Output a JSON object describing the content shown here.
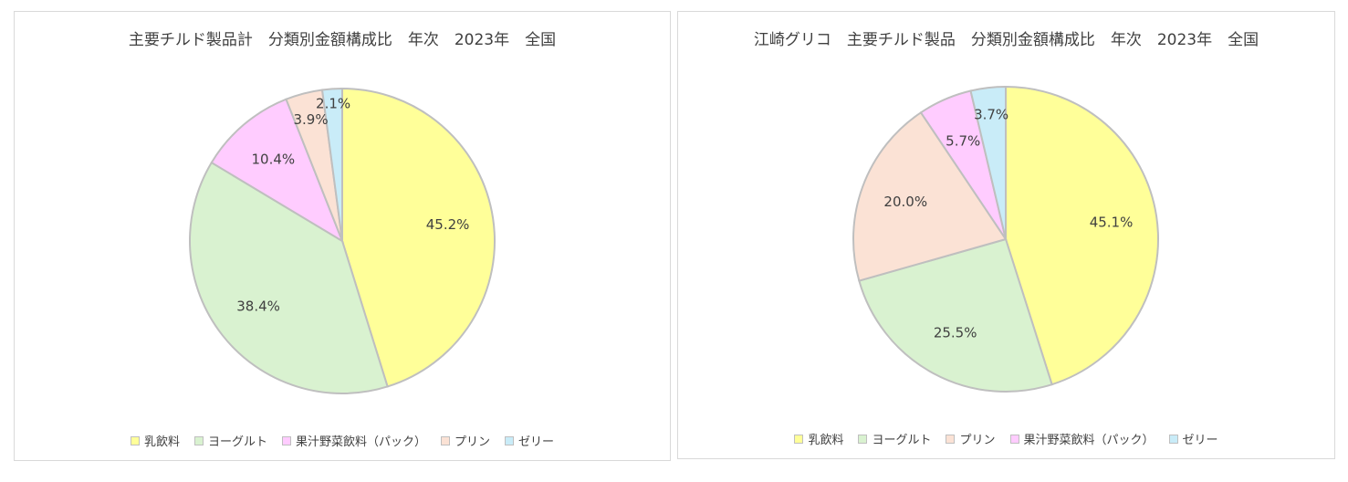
{
  "chart_data": [
    {
      "type": "pie",
      "title": "主要チルド製品計　分類別金額構成比　年次　2023年　全国",
      "legend_position": "bottom",
      "slices": [
        {
          "name": "乳飲料",
          "value": 45.2,
          "label": "45.2%",
          "color": "#ffff99"
        },
        {
          "name": "ヨーグルト",
          "value": 38.4,
          "label": "38.4%",
          "color": "#d9f2d0"
        },
        {
          "name": "果汁野菜飲料（パック）",
          "value": 10.4,
          "label": "10.4%",
          "color": "#ffccff"
        },
        {
          "name": "プリン",
          "value": 3.9,
          "label": "3.9%",
          "color": "#fbe2d5"
        },
        {
          "name": "ゼリー",
          "value": 2.1,
          "label": "2.1%",
          "color": "#c9ecf8"
        }
      ]
    },
    {
      "type": "pie",
      "title": "江崎グリコ　主要チルド製品　分類別金額構成比　年次　2023年　全国",
      "legend_position": "bottom",
      "slices": [
        {
          "name": "乳飲料",
          "value": 45.1,
          "label": "45.1%",
          "color": "#ffff99"
        },
        {
          "name": "ヨーグルト",
          "value": 25.5,
          "label": "25.5%",
          "color": "#d9f2d0"
        },
        {
          "name": "プリン",
          "value": 20.0,
          "label": "20.0%",
          "color": "#fbe2d5"
        },
        {
          "name": "果汁野菜飲料（パック）",
          "value": 5.7,
          "label": "5.7%",
          "color": "#ffccff"
        },
        {
          "name": "ゼリー",
          "value": 3.7,
          "label": "3.7%",
          "color": "#c9ecf8"
        }
      ]
    }
  ]
}
